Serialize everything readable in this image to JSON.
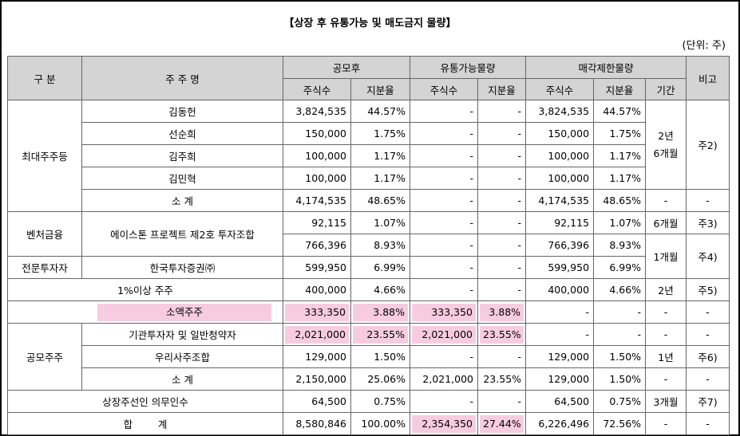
{
  "title": "【상장 후 유통가능 및 매도금지 물량】",
  "unit": "(단위: 주)",
  "headers": {
    "category": "구 분",
    "holder": "주 주 명",
    "public_offering": "공모후",
    "tradable": "유통가능물량",
    "restricted": "매각제한물량",
    "remarks": "비고",
    "shares": "주식수",
    "ratio": "지분율",
    "period": "기간"
  },
  "groups": {
    "largest": "최대주주등",
    "venture": "벤처금융",
    "professional": "전문투자자",
    "ipo": "공모주주"
  },
  "rows": [
    {
      "name": "김동헌",
      "shares": "3,824,535",
      "ratio": "44.57%",
      "t_shares": "-",
      "t_ratio": "-",
      "r_shares": "3,824,535",
      "r_ratio": "44.57%"
    },
    {
      "name": "선순희",
      "shares": "150,000",
      "ratio": "1.75%",
      "t_shares": "-",
      "t_ratio": "-",
      "r_shares": "150,000",
      "r_ratio": "1.75%"
    },
    {
      "name": "김주희",
      "shares": "100,000",
      "ratio": "1.17%",
      "t_shares": "-",
      "t_ratio": "-",
      "r_shares": "100,000",
      "r_ratio": "1.17%"
    },
    {
      "name": "김민혁",
      "shares": "100,000",
      "ratio": "1.17%",
      "t_shares": "-",
      "t_ratio": "-",
      "r_shares": "100,000",
      "r_ratio": "1.17%"
    },
    {
      "name": "소 계",
      "shares": "4,174,535",
      "ratio": "48.65%",
      "t_shares": "-",
      "t_ratio": "-",
      "r_shares": "4,174,535",
      "r_ratio": "48.65%",
      "period": "-",
      "note": "-"
    },
    {
      "name": "에이스톤 프로젝트 제2호 투자조합",
      "shares": "92,115",
      "ratio": "1.07%",
      "t_shares": "-",
      "t_ratio": "-",
      "r_shares": "92,115",
      "r_ratio": "1.07%",
      "period": "6개월",
      "note": "주3)"
    },
    {
      "shares": "766,396",
      "ratio": "8.93%",
      "t_shares": "-",
      "t_ratio": "-",
      "r_shares": "766,396",
      "r_ratio": "8.93%"
    },
    {
      "name": "한국투자증권㈜",
      "shares": "599,950",
      "ratio": "6.99%",
      "t_shares": "-",
      "t_ratio": "-",
      "r_shares": "599,950",
      "r_ratio": "6.99%"
    },
    {
      "name": "1%이상 주주",
      "shares": "400,000",
      "ratio": "4.66%",
      "t_shares": "-",
      "t_ratio": "-",
      "r_shares": "400,000",
      "r_ratio": "4.66%",
      "period": "2년",
      "note": "주5)"
    },
    {
      "name": "소액주주",
      "shares": "333,350",
      "ratio": "3.88%",
      "t_shares": "333,350",
      "t_ratio": "3.88%",
      "r_shares": "-",
      "r_ratio": "-",
      "period": "-",
      "note": "-"
    },
    {
      "name": "기관투자자 및 일반청약자",
      "shares": "2,021,000",
      "ratio": "23.55%",
      "t_shares": "2,021,000",
      "t_ratio": "23.55%",
      "r_shares": "-",
      "r_ratio": "-",
      "period": "-",
      "note": "-"
    },
    {
      "name": "우리사주조합",
      "shares": "129,000",
      "ratio": "1.50%",
      "t_shares": "-",
      "t_ratio": "-",
      "r_shares": "129,000",
      "r_ratio": "1.50%",
      "period": "1년",
      "note": "주6)"
    },
    {
      "name": "소 계",
      "shares": "2,150,000",
      "ratio": "25.06%",
      "t_shares": "2,021,000",
      "t_ratio": "23.55%",
      "r_shares": "129,000",
      "r_ratio": "1.50%",
      "period": "-",
      "note": "-"
    },
    {
      "name": "상장주선인 의무인수",
      "shares": "64,500",
      "ratio": "0.75%",
      "t_shares": "-",
      "t_ratio": "-",
      "r_shares": "64,500",
      "r_ratio": "0.75%",
      "period": "3개월",
      "note": "주7)"
    },
    {
      "name": "합        계",
      "shares": "8,580,846",
      "ratio": "100.00%",
      "t_shares": "2,354,350",
      "t_ratio": "27.44%",
      "r_shares": "6,226,496",
      "r_ratio": "72.56%",
      "period": "-",
      "note": "-"
    }
  ],
  "merged": {
    "largest_period": "2년\n6개월",
    "largest_note": "주2)",
    "pro_period": "1개월",
    "pro_note": "주4)"
  },
  "colors": {
    "header_bg": "#d4d4d4",
    "highlight": "#f7cce0",
    "border": "#666666"
  }
}
